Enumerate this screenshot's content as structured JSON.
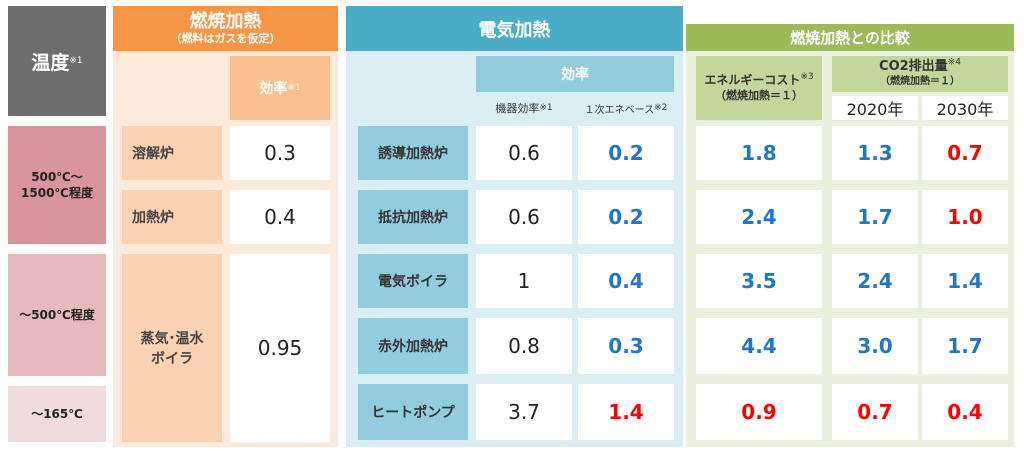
{
  "colors": {
    "blue": "#1f77c8",
    "red": "#ff0000",
    "combustion": "#f79646",
    "electric": "#4bacc6",
    "comparison": "#9bbb59"
  },
  "temperature": {
    "header": "温度",
    "header_note": "※1",
    "ranges": [
      "500℃～",
      "1500℃程度",
      "～500℃程度",
      "～165℃"
    ]
  },
  "combustion": {
    "title": "燃焼加熱",
    "subtitle": "（燃料はガスを仮定）",
    "efficiency_label": "効率",
    "efficiency_note": "※1",
    "rows": [
      {
        "name": "溶解炉",
        "value": "0.3"
      },
      {
        "name": "加熱炉",
        "value": "0.4"
      },
      {
        "name_line1": "蒸気･温水",
        "name_line2": "ボイラ",
        "value": "0.95"
      }
    ]
  },
  "electric": {
    "title": "電気加熱",
    "efficiency_label": "効率",
    "col1_label": "機器効率",
    "col1_note": "※1",
    "col2_label": "１次エネベース",
    "col2_note": "※2",
    "rows": [
      {
        "name": "誘導加熱炉",
        "device": "0.6",
        "primary": "0.2"
      },
      {
        "name": "抵抗加熱炉",
        "device": "0.6",
        "primary": "0.2"
      },
      {
        "name": "電気ボイラ",
        "device": "1",
        "primary": "0.4"
      },
      {
        "name": "赤外加熱炉",
        "device": "0.8",
        "primary": "0.3"
      },
      {
        "name": "ヒートポンプ",
        "device": "3.7",
        "primary": "1.4"
      }
    ]
  },
  "comparison": {
    "title": "燃焼加熱との比較",
    "energy_cost_label": "エネルギーコスト",
    "energy_cost_note": "※3",
    "energy_cost_sub": "（燃焼加熱＝１）",
    "co2_label": "CO2排出量",
    "co2_note": "※4",
    "co2_sub": "（燃焼加熱＝１）",
    "year1": "2020年",
    "year2": "2030年",
    "rows": [
      {
        "cost": "1.8",
        "co2_2020": "1.3",
        "co2_2030": "0.7"
      },
      {
        "cost": "2.4",
        "co2_2020": "1.7",
        "co2_2030": "1.0"
      },
      {
        "cost": "3.5",
        "co2_2020": "2.4",
        "co2_2030": "1.4"
      },
      {
        "cost": "4.4",
        "co2_2020": "3.0",
        "co2_2030": "1.7"
      },
      {
        "cost": "0.9",
        "co2_2020": "0.7",
        "co2_2030": "0.4"
      }
    ]
  }
}
